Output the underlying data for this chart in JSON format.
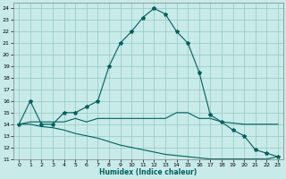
{
  "title": "",
  "xlabel": "Humidex (Indice chaleur)",
  "background_color": "#c8eae8",
  "grid_color": "#90c8c4",
  "line_color": "#006060",
  "xlim": [
    -0.5,
    23.5
  ],
  "ylim": [
    11,
    24.5
  ],
  "xticks": [
    0,
    1,
    2,
    3,
    4,
    5,
    6,
    7,
    8,
    9,
    10,
    11,
    12,
    13,
    14,
    15,
    16,
    17,
    18,
    19,
    20,
    21,
    22,
    23
  ],
  "yticks": [
    11,
    12,
    13,
    14,
    15,
    16,
    17,
    18,
    19,
    20,
    21,
    22,
    23,
    24
  ],
  "line1_x": [
    0,
    1,
    2,
    3,
    4,
    5,
    6,
    7,
    8,
    9,
    10,
    11,
    12,
    13,
    14,
    15,
    16,
    17,
    18,
    19,
    20,
    21,
    22,
    23
  ],
  "line1_y": [
    14,
    16,
    14,
    14,
    15,
    15,
    15.5,
    16,
    19,
    21,
    22,
    23.2,
    24,
    23.5,
    22,
    21,
    18.5,
    14.8,
    14.2,
    13.5,
    13,
    11.8,
    11.5,
    11.2
  ],
  "line2_x": [
    0,
    1,
    2,
    3,
    4,
    5,
    6,
    7,
    8,
    9,
    10,
    11,
    12,
    13,
    14,
    15,
    16,
    17,
    18,
    19,
    20,
    21,
    22,
    23
  ],
  "line2_y": [
    14,
    14.2,
    14.2,
    14.2,
    14.2,
    14.5,
    14.2,
    14.5,
    14.5,
    14.5,
    14.5,
    14.5,
    14.5,
    14.5,
    15,
    15,
    14.5,
    14.5,
    14.2,
    14.1,
    14.0,
    14.0,
    14.0,
    14.0
  ],
  "line3_x": [
    0,
    1,
    2,
    3,
    4,
    5,
    6,
    7,
    8,
    9,
    10,
    11,
    12,
    13,
    14,
    15,
    16,
    17,
    18,
    19,
    20,
    21,
    22,
    23
  ],
  "line3_y": [
    14,
    14,
    13.8,
    13.7,
    13.5,
    13.2,
    13.0,
    12.8,
    12.5,
    12.2,
    12.0,
    11.8,
    11.6,
    11.4,
    11.3,
    11.2,
    11.1,
    11.0,
    11.0,
    11.0,
    11.0,
    11.0,
    11.0,
    11.2
  ],
  "markersize": 3
}
